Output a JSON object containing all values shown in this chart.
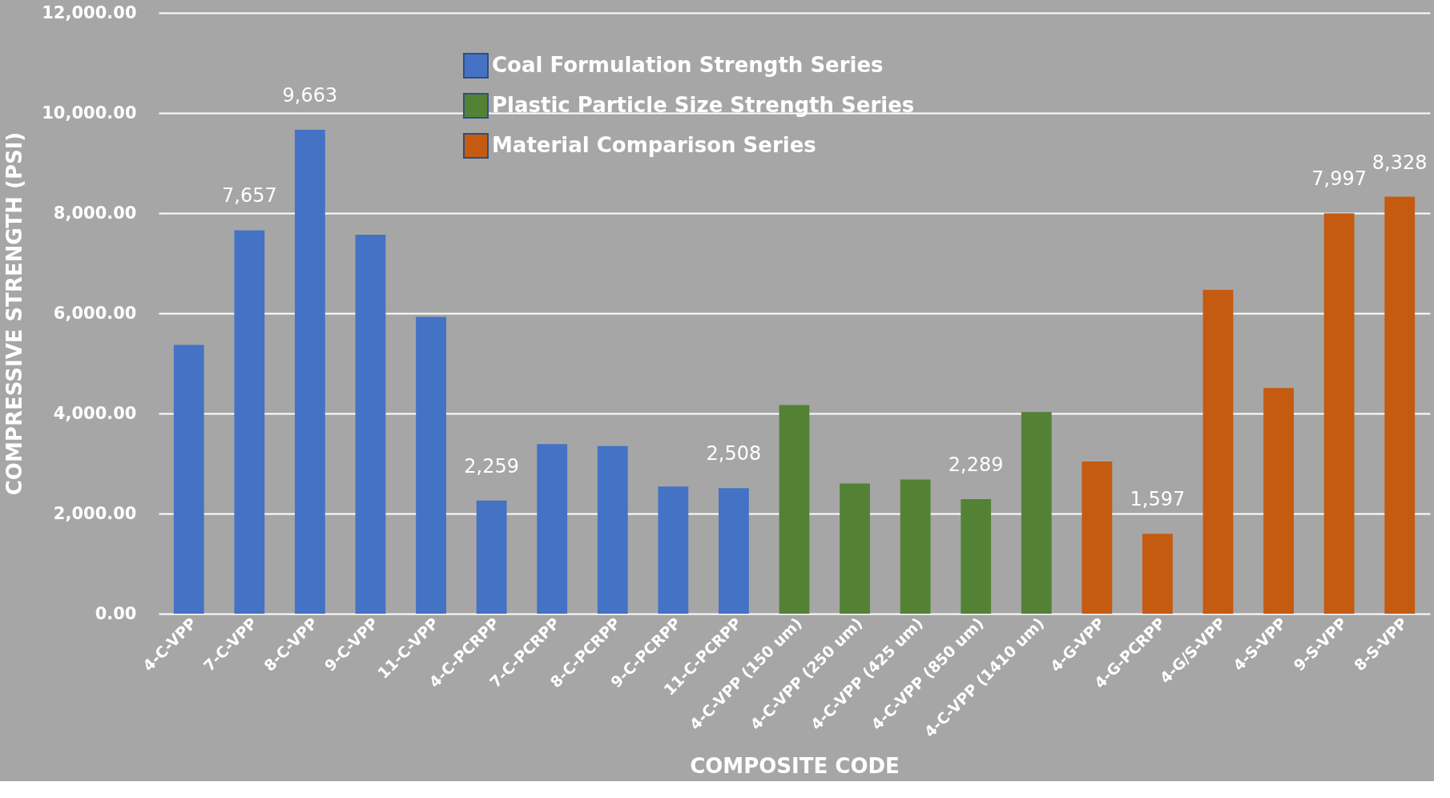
{
  "chart_data": {
    "type": "bar",
    "xlabel": "COMPOSITE CODE",
    "ylabel": "COMPRESSIVE STRENGTH (PSI)",
    "categories": [
      "4-C-VPP",
      "7-C-VPP",
      "8-C-VPP",
      "9-C-VPP",
      "11-C-VPP",
      "4-C-PCRPP",
      "7-C-PCRPP",
      "8-C-PCRPP",
      "9-C-PCRPP",
      "11-C-PCRPP",
      "4-C-VPP (150 um)",
      "4-C-VPP (250 um)",
      "4-C-VPP (425 um)",
      "4-C-VPP (850 um)",
      "4-C-VPP (1410 um)",
      "4-G-VPP",
      "4-G-PCRPP",
      "4-G/S-VPP",
      "4-S-VPP",
      "9-S-VPP",
      "8-S-VPP"
    ],
    "series": [
      {
        "name": "Coal Formulation Strength Series",
        "color": "#4472c4",
        "values": [
          5370,
          7657,
          9663,
          7570,
          5930,
          2259,
          3390,
          3350,
          2540,
          2508,
          null,
          null,
          null,
          null,
          null,
          null,
          null,
          null,
          null,
          null,
          null
        ],
        "value_labels": [
          null,
          "7,657",
          "9,663",
          null,
          null,
          "2,259",
          null,
          null,
          null,
          "2,508",
          null,
          null,
          null,
          null,
          null,
          null,
          null,
          null,
          null,
          null,
          null
        ]
      },
      {
        "name": "Plastic Particle Size Strength Series",
        "color": "#548235",
        "values": [
          null,
          null,
          null,
          null,
          null,
          null,
          null,
          null,
          null,
          null,
          4170,
          2600,
          2680,
          2289,
          4030,
          null,
          null,
          null,
          null,
          null,
          null
        ],
        "value_labels": [
          null,
          null,
          null,
          null,
          null,
          null,
          null,
          null,
          null,
          null,
          null,
          null,
          null,
          "2,289",
          null,
          null,
          null,
          null,
          null,
          null,
          null
        ]
      },
      {
        "name": "Material Comparison Series",
        "color": "#c55a11",
        "values": [
          null,
          null,
          null,
          null,
          null,
          null,
          null,
          null,
          null,
          null,
          null,
          null,
          null,
          null,
          null,
          3040,
          1597,
          6470,
          4510,
          7997,
          8328
        ],
        "value_labels": [
          null,
          null,
          null,
          null,
          null,
          null,
          null,
          null,
          null,
          null,
          null,
          null,
          null,
          null,
          null,
          null,
          "1,597",
          null,
          null,
          "7,997",
          "8,328"
        ]
      }
    ],
    "ylim": [
      0,
      12000
    ],
    "yticks": [
      {
        "value": 0,
        "label": "0.00"
      },
      {
        "value": 2000,
        "label": "2,000.00"
      },
      {
        "value": 4000,
        "label": "4,000.00"
      },
      {
        "value": 6000,
        "label": "6,000.00"
      },
      {
        "value": 8000,
        "label": "8,000.00"
      },
      {
        "value": 10000,
        "label": "10,000.00"
      },
      {
        "value": 12000,
        "label": "12,000.00"
      }
    ],
    "grid": "y",
    "legend": "top"
  }
}
